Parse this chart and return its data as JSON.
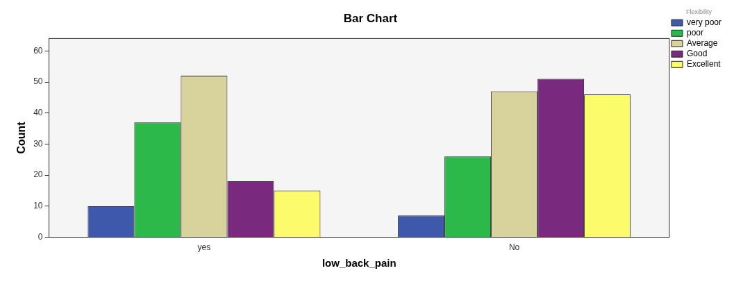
{
  "chart_data": {
    "type": "bar",
    "title": "Bar Chart",
    "xlabel": "low_back_pain",
    "ylabel": "Count",
    "legend_title": "Flexibility",
    "categories": [
      "yes",
      "No"
    ],
    "series": [
      {
        "name": "very poor",
        "color": "#3e58ac",
        "values": [
          10,
          7
        ]
      },
      {
        "name": "poor",
        "color": "#2db84a",
        "values": [
          37,
          26
        ]
      },
      {
        "name": "Average",
        "color": "#d8d29c",
        "values": [
          52,
          47
        ]
      },
      {
        "name": "Good",
        "color": "#7a2a7e",
        "values": [
          18,
          51
        ]
      },
      {
        "name": "Excellent",
        "color": "#fbfb6c",
        "values": [
          15,
          46
        ]
      }
    ],
    "ylim": [
      0,
      64
    ],
    "yticks": [
      0,
      10,
      20,
      30,
      40,
      50,
      60
    ],
    "grid": false,
    "legend": "top right"
  }
}
